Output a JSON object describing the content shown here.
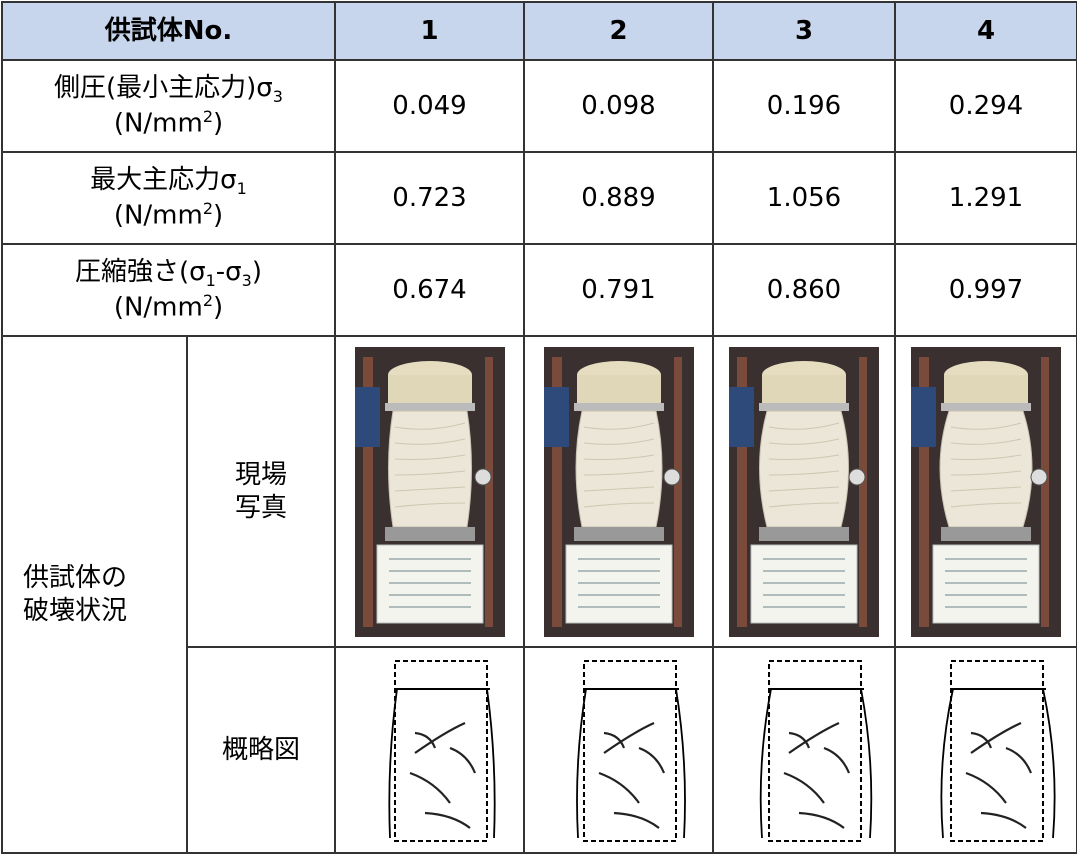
{
  "table": {
    "header": [
      "供試体No.",
      "1",
      "2",
      "3",
      "4"
    ],
    "rows": [
      {
        "label": [
          "側圧(最小主応力)σ",
          "3"
        ],
        "unit": [
          "(N/mm",
          "2",
          ")"
        ],
        "values": [
          "0.049",
          "0.098",
          "0.196",
          "0.294"
        ]
      },
      {
        "label": [
          "最大主応力σ",
          "1"
        ],
        "unit": [
          "(N/mm",
          "2",
          ")"
        ],
        "values": [
          "0.723",
          "0.889",
          "1.056",
          "1.291"
        ]
      },
      {
        "label": [
          "圧縮強さ(σ",
          "1",
          "-σ",
          "3",
          ")"
        ],
        "unit": [
          "(N/mm",
          "2",
          ")"
        ],
        "values": [
          "0.674",
          "0.791",
          "0.860",
          "0.997"
        ]
      }
    ],
    "failure": {
      "label": "供試体の\n破壊状況",
      "photo_label": "現場\n写真",
      "sketch_label": "概略図"
    }
  }
}
